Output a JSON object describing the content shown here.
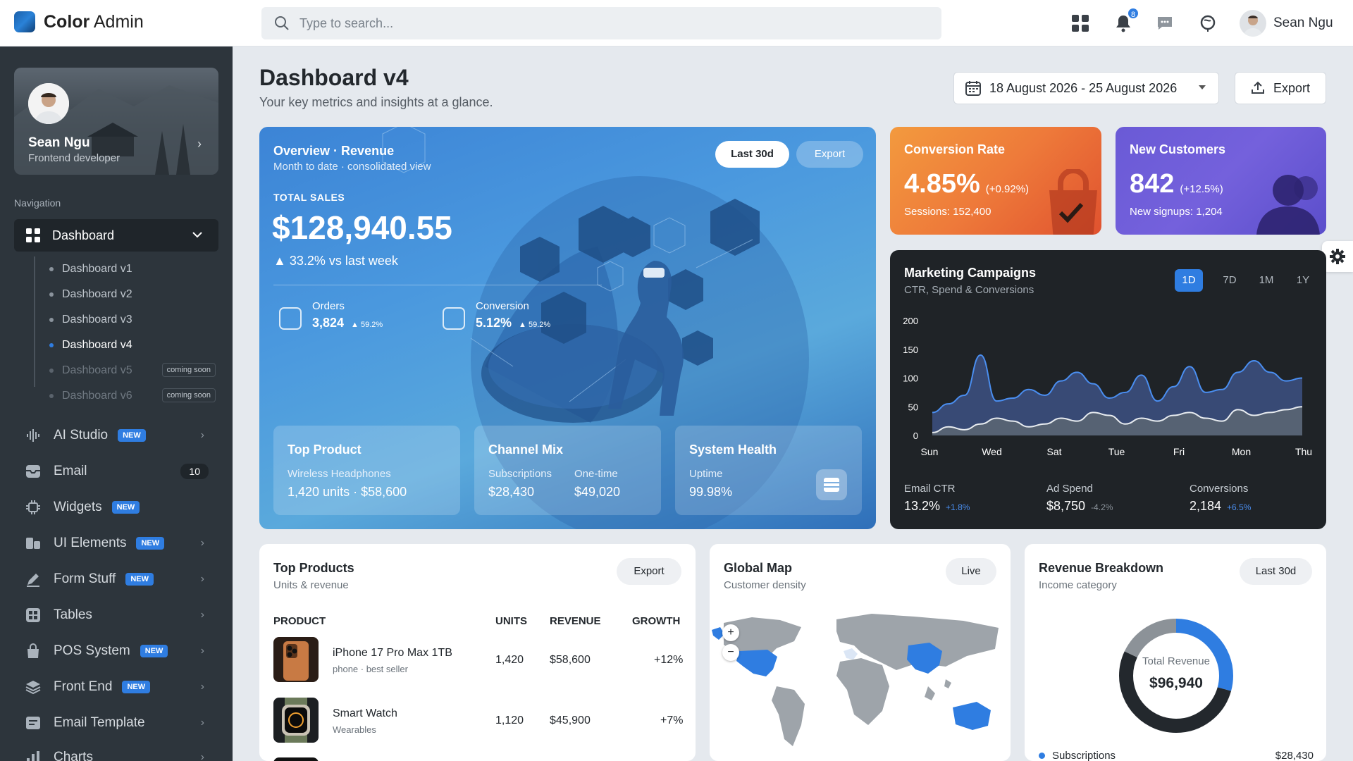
{
  "app": {
    "logo_bold": "Color",
    "logo_light": "Admin"
  },
  "search": {
    "placeholder": "Type to search..."
  },
  "topbar": {
    "notification_count": "8",
    "user_name": "Sean Ngu"
  },
  "profile": {
    "name": "Sean Ngu",
    "role": "Frontend developer"
  },
  "nav": {
    "heading": "Navigation",
    "dashboard_label": "Dashboard",
    "sub_items": [
      {
        "label": "Dashboard v1"
      },
      {
        "label": "Dashboard v2"
      },
      {
        "label": "Dashboard v3"
      },
      {
        "label": "Dashboard v4"
      },
      {
        "label": "Dashboard v5",
        "tag": "coming soon"
      },
      {
        "label": "Dashboard v6",
        "tag": "coming soon"
      }
    ],
    "items": [
      {
        "label": "AI Studio",
        "tag": "NEW",
        "icon": "waveform-icon"
      },
      {
        "label": "Email",
        "count": "10",
        "icon": "inbox-icon"
      },
      {
        "label": "Widgets",
        "tag": "NEW",
        "icon": "chip-icon"
      },
      {
        "label": "UI Elements",
        "tag": "NEW",
        "icon": "shapes-icon"
      },
      {
        "label": "Form Stuff",
        "tag": "NEW",
        "icon": "pen-icon"
      },
      {
        "label": "Tables",
        "icon": "table-icon"
      },
      {
        "label": "POS System",
        "tag": "NEW",
        "icon": "bag-icon"
      },
      {
        "label": "Front End",
        "tag": "NEW",
        "icon": "layers-icon"
      },
      {
        "label": "Email Template",
        "icon": "template-icon"
      },
      {
        "label": "Charts",
        "icon": "bar-chart-icon"
      }
    ]
  },
  "page": {
    "title": "Dashboard v4",
    "subtitle": "Your key metrics and insights at a glance.",
    "date_range": "18 August 2026 - 25 August 2026",
    "export_label": "Export"
  },
  "overview": {
    "title": "Overview · Revenue",
    "subtitle": "Month to date · consolidated view",
    "period_button": "Last 30d",
    "export_button": "Export",
    "total_label": "TOTAL SALES",
    "total_value": "$128,940.55",
    "delta": "▲ 33.2% vs last week",
    "orders": {
      "label": "Orders",
      "value": "3,824",
      "change": "▲ 59.2%"
    },
    "conversion": {
      "label": "Conversion",
      "value": "5.12%",
      "change": "▲ 59.2%"
    },
    "top_product": {
      "title": "Top Product",
      "label": "Wireless Headphones",
      "value": "1,420 units · $58,600"
    },
    "channel_mix": {
      "title": "Channel Mix",
      "sub_label": "Subscriptions",
      "sub_value": "$28,430",
      "one_label": "One-time",
      "one_value": "$49,020"
    },
    "system_health": {
      "title": "System Health",
      "label": "Uptime",
      "value": "99.98%"
    }
  },
  "conversion_card": {
    "title": "Conversion Rate",
    "value": "4.85%",
    "change": "(+0.92%)",
    "sessions": "Sessions: 152,400"
  },
  "customers_card": {
    "title": "New Customers",
    "value": "842",
    "change": "(+12.5%)",
    "signups": "New signups: 1,204"
  },
  "marketing": {
    "title": "Marketing Campaigns",
    "subtitle": "CTR, Spend & Conversions",
    "tabs": [
      "1D",
      "7D",
      "1M",
      "1Y"
    ],
    "active_tab": "1D",
    "stats": [
      {
        "label": "Email CTR",
        "value": "13.2%",
        "change": "+1.8%",
        "color": "#4a8ef0"
      },
      {
        "label": "Ad Spend",
        "value": "$8,750",
        "change": "-4.2%",
        "color": "#8a929a"
      },
      {
        "label": "Conversions",
        "value": "2,184",
        "change": "+6.5%",
        "color": "#4a8ef0"
      }
    ]
  },
  "chart_data": {
    "type": "area",
    "x_ticks": [
      "Sun",
      "Wed",
      "Sat",
      "Tue",
      "Fri",
      "Mon",
      "Thu"
    ],
    "y_ticks": [
      "200",
      "150",
      "100",
      "50",
      "0"
    ],
    "ylim": [
      0,
      200
    ],
    "series": [
      {
        "values": [
          40,
          55,
          70,
          140,
          60,
          65,
          80,
          70,
          95,
          110,
          90,
          65,
          75,
          105,
          60,
          85,
          120,
          75,
          80,
          110,
          130,
          110,
          95,
          100
        ]
      },
      {
        "values": [
          5,
          15,
          10,
          20,
          30,
          25,
          15,
          20,
          30,
          25,
          40,
          35,
          20,
          30,
          25,
          35,
          40,
          30,
          25,
          45,
          35,
          40,
          45,
          50
        ]
      }
    ]
  },
  "top_products": {
    "title": "Top Products",
    "subtitle": "Units & revenue",
    "export_label": "Export",
    "columns": [
      "PRODUCT",
      "UNITS",
      "REVENUE",
      "GROWTH"
    ],
    "rows": [
      {
        "name": "iPhone 17 Pro Max 1TB",
        "category": "phone · best seller",
        "units": "1,420",
        "revenue": "$58,600",
        "growth": "+12%"
      },
      {
        "name": "Smart Watch",
        "category": "Wearables",
        "units": "1,120",
        "revenue": "$45,900",
        "growth": "+7%"
      }
    ]
  },
  "global_map": {
    "title": "Global Map",
    "subtitle": "Customer density",
    "live_label": "Live",
    "zoom_in": "+",
    "zoom_out": "−"
  },
  "revenue_breakdown": {
    "title": "Revenue Breakdown",
    "subtitle": "Income category",
    "period_label": "Last 30d",
    "center_label": "Total Revenue",
    "center_value": "$96,940",
    "legend": [
      {
        "label": "Subscriptions",
        "value": "$28,430"
      }
    ],
    "donut_fractions": {
      "blue": 0.293,
      "gray": 0.18,
      "dark": 0.527
    },
    "colors": {
      "blue": "#2f7de1",
      "gray": "#8c9298",
      "dark": "#23282d"
    }
  }
}
